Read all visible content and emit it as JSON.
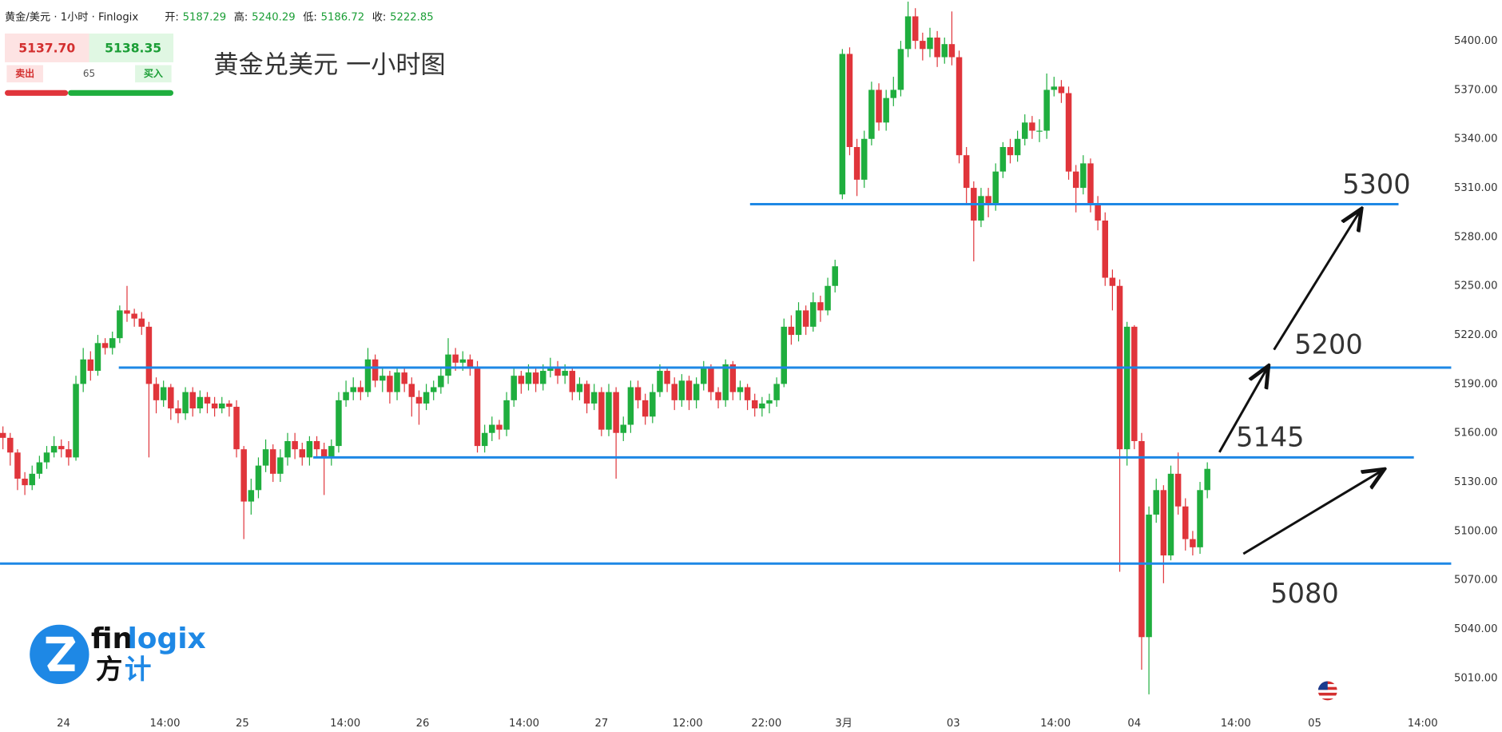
{
  "header": {
    "symbol": "黄金/美元 · 1小时 · Finlogix",
    "fields": [
      {
        "label": "开:",
        "value": "5187.29"
      },
      {
        "label": "高:",
        "value": "5240.29"
      },
      {
        "label": "低:",
        "value": "5186.72"
      },
      {
        "label": "收:",
        "value": "5222.85"
      }
    ]
  },
  "widget": {
    "bid": "5137.70",
    "ask": "5138.35",
    "sell": "卖出",
    "spread": "65",
    "buy": "买入"
  },
  "brand": {
    "fin": "fin",
    "logix": "logix",
    "cn": [
      "方",
      "计"
    ]
  },
  "chart_data": {
    "type": "candlestick",
    "title": "黄金兑美元 一小时图",
    "up_color": "#1fae3e",
    "down_color": "#e0353b",
    "level_color": "#1e88e5",
    "ylim": [
      4991,
      5425
    ],
    "yticks": [
      {
        "value": 5010,
        "label": "5010.00"
      },
      {
        "value": 5040,
        "label": "5040.00"
      },
      {
        "value": 5070,
        "label": "5070.00"
      },
      {
        "value": 5100,
        "label": "5100.00"
      },
      {
        "value": 5130,
        "label": "5130.00"
      },
      {
        "value": 5160,
        "label": "5160.00"
      },
      {
        "value": 5190,
        "label": "5190.00"
      },
      {
        "value": 5220,
        "label": "5220.00"
      },
      {
        "value": 5250,
        "label": "5250.00"
      },
      {
        "value": 5280,
        "label": "5280.00"
      },
      {
        "value": 5310,
        "label": "5310.00"
      },
      {
        "value": 5340,
        "label": "5340.00"
      },
      {
        "value": 5370,
        "label": "5370.00"
      },
      {
        "value": 5400,
        "label": "5400.00"
      }
    ],
    "xlim": [
      -0.4,
      197.1
    ],
    "xticks": [
      {
        "value": 8.3,
        "label": "24"
      },
      {
        "value": 22.2,
        "label": "14:00"
      },
      {
        "value": 32.8,
        "label": "25"
      },
      {
        "value": 46.9,
        "label": "14:00"
      },
      {
        "value": 57.5,
        "label": "26"
      },
      {
        "value": 71.4,
        "label": "14:00"
      },
      {
        "value": 82.0,
        "label": "27"
      },
      {
        "value": 93.8,
        "label": "12:00"
      },
      {
        "value": 104.6,
        "label": "22:00"
      },
      {
        "value": 115.2,
        "label": "3月"
      },
      {
        "value": 130.2,
        "label": "03"
      },
      {
        "value": 144.2,
        "label": "14:00"
      },
      {
        "value": 155.0,
        "label": "04"
      },
      {
        "value": 168.9,
        "label": "14:00"
      },
      {
        "value": 179.7,
        "label": "05"
      },
      {
        "value": 194.5,
        "label": "14:00"
      }
    ],
    "levels": [
      5300,
      5200,
      5145,
      5080
    ],
    "open": [
      5160,
      5157,
      5148,
      5132,
      5128,
      5135,
      5142,
      5148,
      5152,
      5150,
      5145,
      5190,
      5205,
      5198,
      5215,
      5212,
      5218,
      5235,
      5233,
      5230,
      5225,
      5190,
      5180,
      5188,
      5175,
      5172,
      5185,
      5175,
      5182,
      5178,
      5175,
      5178,
      5176,
      5150,
      5118,
      5125,
      5140,
      5150,
      5135,
      5145,
      5155,
      5150,
      5145,
      5155,
      5150,
      5145,
      5152,
      5180,
      5185,
      5188,
      5185,
      5205,
      5192,
      5195,
      5185,
      5197,
      5190,
      5182,
      5178,
      5185,
      5188,
      5195,
      5208,
      5203,
      5205,
      5200,
      5152,
      5160,
      5165,
      5162,
      5180,
      5195,
      5190,
      5197,
      5190,
      5198,
      5200,
      5195,
      5198,
      5185,
      5190,
      5178,
      5185,
      5162,
      5185,
      5160,
      5165,
      5188,
      5180,
      5170,
      5185,
      5198,
      5190,
      5180,
      5192,
      5180,
      5190,
      5200,
      5185,
      5180,
      5202,
      5185,
      5188,
      5180,
      5175,
      5178,
      5180,
      5190,
      5225,
      5220,
      5235,
      5225,
      5240,
      5235,
      5250,
      5306,
      5392,
      5335,
      5315,
      5340,
      5370,
      5350,
      5365,
      5370,
      5395,
      5415,
      5400,
      5395,
      5402,
      5390,
      5398,
      5390,
      5330,
      5310,
      5290,
      5305,
      5300,
      5320,
      5335,
      5330,
      5340,
      5350,
      5345,
      5345,
      5370,
      5372,
      5368,
      5320,
      5310,
      5325,
      5300,
      5290,
      5255,
      5250,
      5150,
      5225,
      5155,
      5035,
      5110,
      5125,
      5085,
      5135,
      5115,
      5095,
      5090,
      5125
    ],
    "high": [
      5164,
      5160,
      5150,
      5136,
      5140,
      5146,
      5152,
      5158,
      5156,
      5155,
      5195,
      5212,
      5210,
      5220,
      5218,
      5222,
      5238,
      5250,
      5236,
      5234,
      5228,
      5194,
      5192,
      5190,
      5180,
      5188,
      5188,
      5186,
      5185,
      5182,
      5182,
      5180,
      5180,
      5152,
      5132,
      5145,
      5156,
      5153,
      5150,
      5160,
      5160,
      5154,
      5158,
      5158,
      5154,
      5156,
      5185,
      5192,
      5194,
      5192,
      5212,
      5208,
      5200,
      5198,
      5200,
      5200,
      5194,
      5186,
      5190,
      5192,
      5200,
      5218,
      5212,
      5210,
      5208,
      5204,
      5165,
      5170,
      5168,
      5185,
      5200,
      5198,
      5202,
      5200,
      5202,
      5206,
      5204,
      5202,
      5200,
      5194,
      5192,
      5190,
      5188,
      5190,
      5188,
      5170,
      5192,
      5192,
      5184,
      5190,
      5202,
      5200,
      5194,
      5196,
      5195,
      5194,
      5204,
      5202,
      5188,
      5205,
      5204,
      5192,
      5190,
      5184,
      5182,
      5184,
      5194,
      5230,
      5232,
      5240,
      5238,
      5246,
      5244,
      5255,
      5266,
      5395,
      5396,
      5340,
      5345,
      5375,
      5374,
      5370,
      5378,
      5400,
      5424,
      5420,
      5405,
      5408,
      5406,
      5402,
      5418,
      5394,
      5335,
      5314,
      5310,
      5310,
      5325,
      5338,
      5340,
      5345,
      5355,
      5354,
      5352,
      5380,
      5378,
      5376,
      5372,
      5324,
      5330,
      5328,
      5305,
      5295,
      5260,
      5254,
      5228,
      5226,
      5160,
      5115,
      5132,
      5128,
      5140,
      5148,
      5120,
      5100,
      5130,
      5142
    ],
    "low": [
      5150,
      5140,
      5125,
      5122,
      5125,
      5132,
      5138,
      5145,
      5145,
      5140,
      5143,
      5185,
      5192,
      5195,
      5208,
      5208,
      5215,
      5228,
      5225,
      5220,
      5145,
      5172,
      5176,
      5168,
      5166,
      5168,
      5170,
      5172,
      5172,
      5170,
      5172,
      5170,
      5145,
      5095,
      5110,
      5120,
      5136,
      5130,
      5130,
      5140,
      5144,
      5140,
      5140,
      5145,
      5122,
      5140,
      5148,
      5176,
      5180,
      5180,
      5182,
      5188,
      5185,
      5178,
      5180,
      5185,
      5170,
      5165,
      5174,
      5180,
      5184,
      5190,
      5198,
      5198,
      5195,
      5148,
      5148,
      5155,
      5156,
      5158,
      5176,
      5184,
      5186,
      5185,
      5186,
      5194,
      5190,
      5190,
      5180,
      5180,
      5172,
      5174,
      5158,
      5158,
      5132,
      5155,
      5160,
      5175,
      5165,
      5166,
      5182,
      5185,
      5174,
      5176,
      5174,
      5175,
      5186,
      5180,
      5175,
      5176,
      5180,
      5180,
      5174,
      5170,
      5170,
      5172,
      5176,
      5188,
      5214,
      5216,
      5220,
      5222,
      5228,
      5232,
      5246,
      5303,
      5330,
      5305,
      5310,
      5336,
      5345,
      5345,
      5360,
      5366,
      5390,
      5395,
      5388,
      5390,
      5384,
      5386,
      5385,
      5325,
      5300,
      5265,
      5286,
      5292,
      5296,
      5316,
      5325,
      5326,
      5336,
      5340,
      5338,
      5340,
      5366,
      5362,
      5315,
      5295,
      5306,
      5295,
      5284,
      5250,
      5235,
      5075,
      5140,
      5150,
      5015,
      5000,
      5105,
      5068,
      5082,
      5110,
      5088,
      5085,
      5086,
      5120
    ],
    "close": [
      5157,
      5148,
      5132,
      5128,
      5135,
      5142,
      5148,
      5152,
      5150,
      5145,
      5190,
      5205,
      5198,
      5215,
      5212,
      5218,
      5235,
      5233,
      5230,
      5225,
      5190,
      5180,
      5188,
      5175,
      5172,
      5185,
      5175,
      5182,
      5178,
      5175,
      5178,
      5176,
      5150,
      5118,
      5125,
      5140,
      5150,
      5135,
      5145,
      5155,
      5150,
      5145,
      5155,
      5150,
      5145,
      5152,
      5180,
      5185,
      5188,
      5185,
      5205,
      5192,
      5195,
      5185,
      5197,
      5190,
      5182,
      5178,
      5185,
      5188,
      5195,
      5208,
      5203,
      5205,
      5200,
      5152,
      5160,
      5165,
      5162,
      5180,
      5195,
      5190,
      5197,
      5190,
      5198,
      5200,
      5195,
      5198,
      5185,
      5190,
      5178,
      5185,
      5162,
      5185,
      5160,
      5165,
      5188,
      5180,
      5170,
      5185,
      5198,
      5190,
      5180,
      5192,
      5180,
      5190,
      5200,
      5185,
      5180,
      5202,
      5185,
      5188,
      5180,
      5175,
      5178,
      5180,
      5190,
      5225,
      5220,
      5235,
      5225,
      5240,
      5235,
      5250,
      5262,
      5392,
      5335,
      5315,
      5340,
      5370,
      5350,
      5365,
      5370,
      5395,
      5415,
      5400,
      5395,
      5402,
      5390,
      5398,
      5390,
      5330,
      5310,
      5290,
      5305,
      5300,
      5320,
      5335,
      5330,
      5340,
      5350,
      5345,
      5345,
      5370,
      5372,
      5368,
      5320,
      5310,
      5325,
      5300,
      5290,
      5255,
      5250,
      5150,
      5225,
      5155,
      5035,
      5110,
      5125,
      5085,
      5135,
      5115,
      5095,
      5090,
      5125,
      5138
    ]
  }
}
